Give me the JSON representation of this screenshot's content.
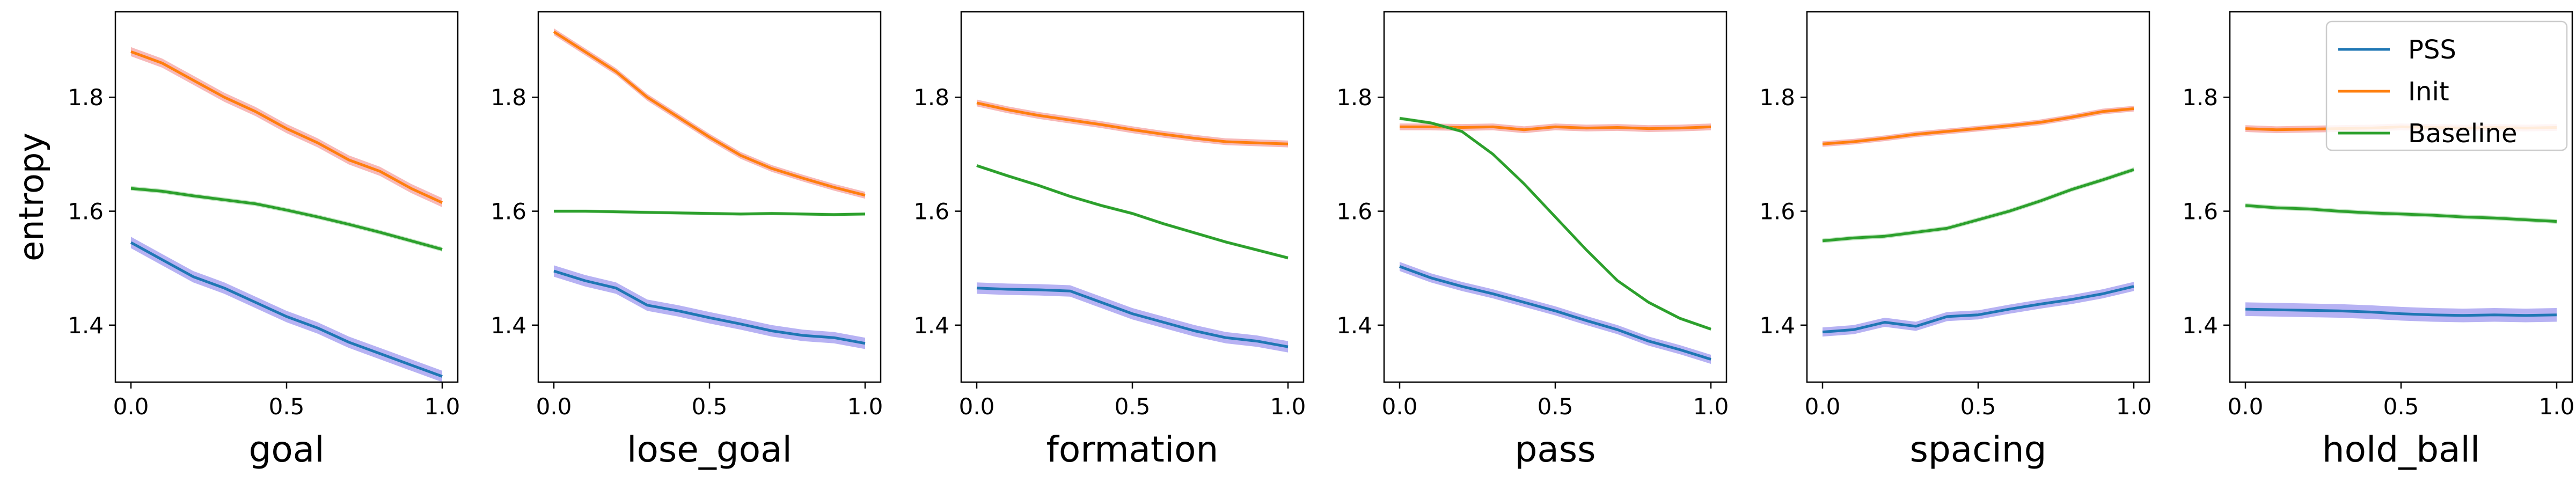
{
  "chart_data": [
    {
      "type": "line",
      "xlabel": "goal",
      "ylabel": "entropy",
      "xlim": [
        -0.05,
        1.05
      ],
      "ylim": [
        1.3,
        1.95
      ],
      "xticks": [
        "0.0",
        "0.5",
        "1.0"
      ],
      "yticks": [
        "1.4",
        "1.6",
        "1.8"
      ],
      "x": [
        0.0,
        0.1,
        0.2,
        0.3,
        0.4,
        0.5,
        0.6,
        0.7,
        0.8,
        0.9,
        1.0
      ],
      "series": [
        {
          "name": "PSS",
          "values": [
            1.545,
            1.515,
            1.485,
            1.465,
            1.44,
            1.415,
            1.395,
            1.37,
            1.35,
            1.33,
            1.31
          ],
          "band": 0.01
        },
        {
          "name": "Init",
          "values": [
            1.88,
            1.86,
            1.83,
            1.8,
            1.775,
            1.745,
            1.72,
            1.69,
            1.67,
            1.64,
            1.615
          ],
          "band": 0.008
        },
        {
          "name": "Baseline",
          "values": [
            1.64,
            1.635,
            1.627,
            1.62,
            1.613,
            1.602,
            1.59,
            1.577,
            1.563,
            1.548,
            1.533
          ],
          "band": 0.004
        }
      ]
    },
    {
      "type": "line",
      "xlabel": "lose_goal",
      "ylabel": "",
      "xlim": [
        -0.05,
        1.05
      ],
      "ylim": [
        1.3,
        1.95
      ],
      "xticks": [
        "0.0",
        "0.5",
        "1.0"
      ],
      "yticks": [
        "1.4",
        "1.6",
        "1.8"
      ],
      "x": [
        0.0,
        0.1,
        0.2,
        0.3,
        0.4,
        0.5,
        0.6,
        0.7,
        0.8,
        0.9,
        1.0
      ],
      "series": [
        {
          "name": "PSS",
          "values": [
            1.495,
            1.478,
            1.465,
            1.435,
            1.425,
            1.413,
            1.402,
            1.39,
            1.382,
            1.378,
            1.368
          ],
          "band": 0.01
        },
        {
          "name": "Init",
          "values": [
            1.915,
            1.88,
            1.845,
            1.8,
            1.765,
            1.73,
            1.698,
            1.675,
            1.658,
            1.642,
            1.628
          ],
          "band": 0.006
        },
        {
          "name": "Baseline",
          "values": [
            1.6,
            1.6,
            1.599,
            1.598,
            1.597,
            1.596,
            1.595,
            1.596,
            1.595,
            1.594,
            1.595
          ],
          "band": 0.003
        }
      ]
    },
    {
      "type": "line",
      "xlabel": "formation",
      "ylabel": "",
      "xlim": [
        -0.05,
        1.05
      ],
      "ylim": [
        1.3,
        1.95
      ],
      "xticks": [
        "0.0",
        "0.5",
        "1.0"
      ],
      "yticks": [
        "1.4",
        "1.6",
        "1.8"
      ],
      "x": [
        0.0,
        0.1,
        0.2,
        0.3,
        0.4,
        0.5,
        0.6,
        0.7,
        0.8,
        0.9,
        1.0
      ],
      "series": [
        {
          "name": "PSS",
          "values": [
            1.465,
            1.463,
            1.462,
            1.46,
            1.44,
            1.42,
            1.405,
            1.39,
            1.378,
            1.372,
            1.362
          ],
          "band": 0.01
        },
        {
          "name": "Init",
          "values": [
            1.79,
            1.778,
            1.768,
            1.76,
            1.752,
            1.743,
            1.735,
            1.728,
            1.722,
            1.72,
            1.718
          ],
          "band": 0.006
        },
        {
          "name": "Baseline",
          "values": [
            1.68,
            1.662,
            1.645,
            1.626,
            1.61,
            1.596,
            1.578,
            1.562,
            1.546,
            1.532,
            1.518
          ],
          "band": 0.003
        }
      ]
    },
    {
      "type": "line",
      "xlabel": "pass",
      "ylabel": "",
      "xlim": [
        -0.05,
        1.05
      ],
      "ylim": [
        1.3,
        1.95
      ],
      "xticks": [
        "0.0",
        "0.5",
        "1.0"
      ],
      "yticks": [
        "1.4",
        "1.6",
        "1.8"
      ],
      "x": [
        0.0,
        0.1,
        0.2,
        0.3,
        0.4,
        0.5,
        0.6,
        0.7,
        0.8,
        0.9,
        1.0
      ],
      "series": [
        {
          "name": "PSS",
          "values": [
            1.503,
            1.483,
            1.468,
            1.455,
            1.44,
            1.425,
            1.408,
            1.392,
            1.372,
            1.357,
            1.34
          ],
          "band": 0.008
        },
        {
          "name": "Init",
          "values": [
            1.748,
            1.748,
            1.747,
            1.748,
            1.743,
            1.748,
            1.746,
            1.747,
            1.745,
            1.746,
            1.748
          ],
          "band": 0.006
        },
        {
          "name": "Baseline",
          "values": [
            1.763,
            1.755,
            1.74,
            1.7,
            1.648,
            1.59,
            1.532,
            1.478,
            1.44,
            1.412,
            1.393
          ],
          "band": 0.003
        }
      ]
    },
    {
      "type": "line",
      "xlabel": "spacing",
      "ylabel": "",
      "xlim": [
        -0.05,
        1.05
      ],
      "ylim": [
        1.3,
        1.95
      ],
      "xticks": [
        "0.0",
        "0.5",
        "1.0"
      ],
      "yticks": [
        "1.4",
        "1.6",
        "1.8"
      ],
      "x": [
        0.0,
        0.1,
        0.2,
        0.3,
        0.4,
        0.5,
        0.6,
        0.7,
        0.8,
        0.9,
        1.0
      ],
      "series": [
        {
          "name": "PSS",
          "values": [
            1.388,
            1.392,
            1.405,
            1.398,
            1.415,
            1.418,
            1.428,
            1.437,
            1.445,
            1.455,
            1.468
          ],
          "band": 0.008
        },
        {
          "name": "Init",
          "values": [
            1.718,
            1.722,
            1.728,
            1.735,
            1.74,
            1.745,
            1.75,
            1.756,
            1.765,
            1.775,
            1.78
          ],
          "band": 0.005
        },
        {
          "name": "Baseline",
          "values": [
            1.548,
            1.553,
            1.556,
            1.563,
            1.57,
            1.585,
            1.6,
            1.618,
            1.638,
            1.655,
            1.673
          ],
          "band": 0.004
        }
      ]
    },
    {
      "type": "line",
      "xlabel": "hold_ball",
      "ylabel": "",
      "xlim": [
        -0.05,
        1.05
      ],
      "ylim": [
        1.3,
        1.95
      ],
      "xticks": [
        "0.0",
        "0.5",
        "1.0"
      ],
      "yticks": [
        "1.4",
        "1.6",
        "1.8"
      ],
      "x": [
        0.0,
        0.1,
        0.2,
        0.3,
        0.4,
        0.5,
        0.6,
        0.7,
        0.8,
        0.9,
        1.0
      ],
      "series": [
        {
          "name": "PSS",
          "values": [
            1.428,
            1.427,
            1.426,
            1.425,
            1.423,
            1.42,
            1.418,
            1.417,
            1.418,
            1.417,
            1.418
          ],
          "band": 0.012
        },
        {
          "name": "Init",
          "values": [
            1.745,
            1.743,
            1.744,
            1.745,
            1.746,
            1.748,
            1.747,
            1.746,
            1.747,
            1.746,
            1.747
          ],
          "band": 0.006
        },
        {
          "name": "Baseline",
          "values": [
            1.61,
            1.606,
            1.604,
            1.6,
            1.597,
            1.595,
            1.593,
            1.59,
            1.588,
            1.585,
            1.582
          ],
          "band": 0.004
        }
      ],
      "legend": {
        "placement": "top-right",
        "entries": [
          "PSS",
          "Init",
          "Baseline"
        ]
      }
    }
  ],
  "colors": {
    "PSS": "#1f77b4",
    "Init": "#ff7f0e",
    "Baseline": "#2ca02c"
  },
  "band_colors": {
    "PSS": "#7b72e9",
    "Init": "#f08080",
    "Baseline": "#8fd18f"
  }
}
